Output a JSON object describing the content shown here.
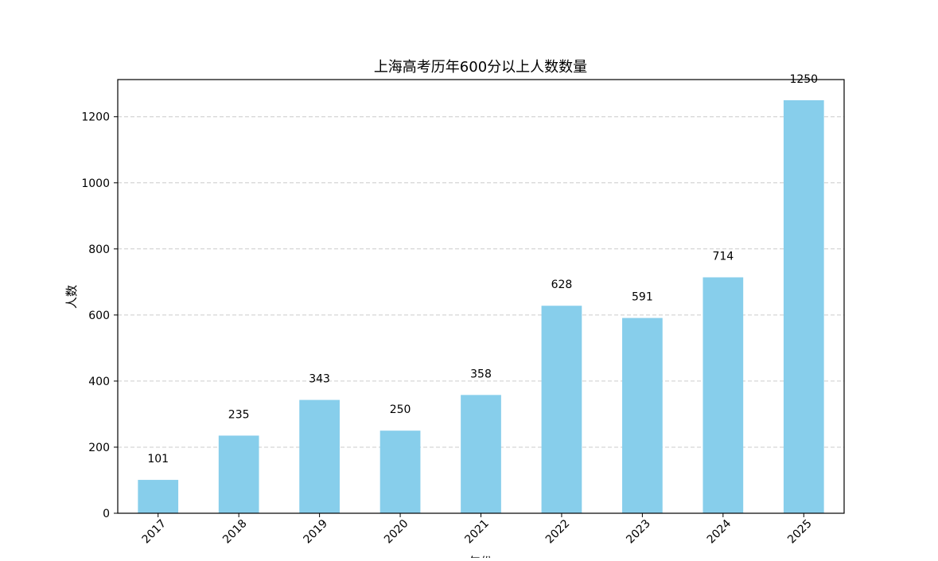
{
  "chart_data": {
    "type": "bar",
    "title": "上海高考历年600分以上人数数量",
    "xlabel": "年份",
    "ylabel": "人数",
    "categories": [
      "2017",
      "2018",
      "2019",
      "2020",
      "2021",
      "2022",
      "2023",
      "2024",
      "2025"
    ],
    "values": [
      101,
      235,
      343,
      250,
      358,
      628,
      591,
      714,
      1250
    ],
    "ylim": [
      0,
      1312.5
    ],
    "yticks": [
      0,
      200,
      400,
      600,
      800,
      1000,
      1200
    ],
    "grid": "y-dashed",
    "bar_color": "#87CEEB",
    "data_labels": true
  }
}
